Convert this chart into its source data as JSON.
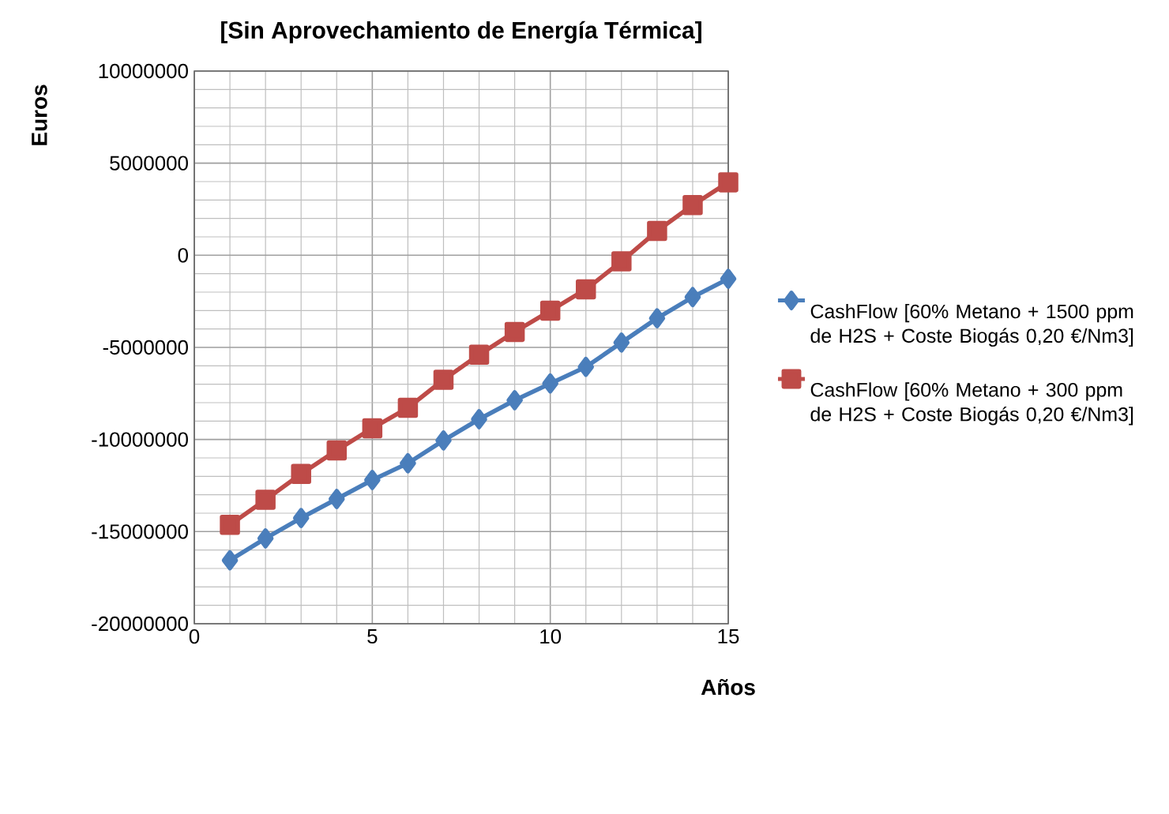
{
  "chart_data": {
    "type": "line",
    "title": "[Sin Aprovechamiento de Energía Térmica]",
    "xlabel": "Años",
    "ylabel": "Euros",
    "x": [
      1,
      2,
      3,
      4,
      5,
      6,
      7,
      8,
      9,
      10,
      11,
      12,
      13,
      14,
      15
    ],
    "xlim": [
      0,
      15
    ],
    "xticks": [
      0,
      5,
      10,
      15
    ],
    "ylim": [
      -20000000,
      10000000
    ],
    "yticks": [
      -20000000,
      -15000000,
      -10000000,
      -5000000,
      0,
      5000000,
      10000000
    ],
    "grid": true,
    "legend": "right",
    "line_style": "solid",
    "series": [
      {
        "name": "CashFlow [60% Metano + 1500 ppm de H2S + Coste Biogás 0,20 €/Nm3]",
        "color": "#4a7ebb",
        "marker": "diamond",
        "values": [
          -16560000,
          -15370000,
          -14260000,
          -13230000,
          -12200000,
          -11290000,
          -10050000,
          -8900000,
          -7870000,
          -6960000,
          -6060000,
          -4740000,
          -3420000,
          -2270000,
          -1280000
        ]
      },
      {
        "name": "CashFlow [60% Metano + 300 ppm de H2S + Coste Biogás 0,20 €/Nm3]",
        "color": "#be4b48",
        "marker": "square",
        "values": [
          -14630000,
          -13270000,
          -11870000,
          -10590000,
          -9390000,
          -8280000,
          -6760000,
          -5400000,
          -4160000,
          -3010000,
          -1850000,
          -330000,
          1320000,
          2720000,
          3960000
        ]
      }
    ]
  }
}
